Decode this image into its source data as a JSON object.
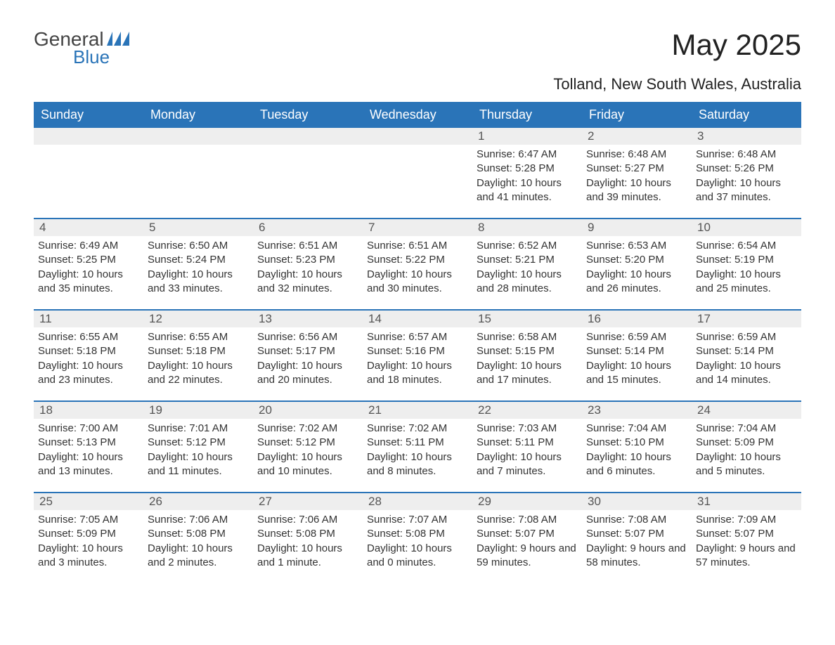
{
  "brand": {
    "general": "General",
    "blue": "Blue",
    "flag_color": "#2a74b8"
  },
  "title": "May 2025",
  "location": "Tolland, New South Wales, Australia",
  "colors": {
    "header_bg": "#2a74b8",
    "header_text": "#ffffff",
    "daynum_bg": "#eeeeee",
    "daynum_text": "#555555",
    "body_text": "#333333",
    "week_divider": "#2a74b8",
    "page_bg": "#ffffff"
  },
  "days_of_week": [
    "Sunday",
    "Monday",
    "Tuesday",
    "Wednesday",
    "Thursday",
    "Friday",
    "Saturday"
  ],
  "weeks": [
    [
      null,
      null,
      null,
      null,
      {
        "n": "1",
        "sunrise": "Sunrise: 6:47 AM",
        "sunset": "Sunset: 5:28 PM",
        "daylight": "Daylight: 10 hours and 41 minutes."
      },
      {
        "n": "2",
        "sunrise": "Sunrise: 6:48 AM",
        "sunset": "Sunset: 5:27 PM",
        "daylight": "Daylight: 10 hours and 39 minutes."
      },
      {
        "n": "3",
        "sunrise": "Sunrise: 6:48 AM",
        "sunset": "Sunset: 5:26 PM",
        "daylight": "Daylight: 10 hours and 37 minutes."
      }
    ],
    [
      {
        "n": "4",
        "sunrise": "Sunrise: 6:49 AM",
        "sunset": "Sunset: 5:25 PM",
        "daylight": "Daylight: 10 hours and 35 minutes."
      },
      {
        "n": "5",
        "sunrise": "Sunrise: 6:50 AM",
        "sunset": "Sunset: 5:24 PM",
        "daylight": "Daylight: 10 hours and 33 minutes."
      },
      {
        "n": "6",
        "sunrise": "Sunrise: 6:51 AM",
        "sunset": "Sunset: 5:23 PM",
        "daylight": "Daylight: 10 hours and 32 minutes."
      },
      {
        "n": "7",
        "sunrise": "Sunrise: 6:51 AM",
        "sunset": "Sunset: 5:22 PM",
        "daylight": "Daylight: 10 hours and 30 minutes."
      },
      {
        "n": "8",
        "sunrise": "Sunrise: 6:52 AM",
        "sunset": "Sunset: 5:21 PM",
        "daylight": "Daylight: 10 hours and 28 minutes."
      },
      {
        "n": "9",
        "sunrise": "Sunrise: 6:53 AM",
        "sunset": "Sunset: 5:20 PM",
        "daylight": "Daylight: 10 hours and 26 minutes."
      },
      {
        "n": "10",
        "sunrise": "Sunrise: 6:54 AM",
        "sunset": "Sunset: 5:19 PM",
        "daylight": "Daylight: 10 hours and 25 minutes."
      }
    ],
    [
      {
        "n": "11",
        "sunrise": "Sunrise: 6:55 AM",
        "sunset": "Sunset: 5:18 PM",
        "daylight": "Daylight: 10 hours and 23 minutes."
      },
      {
        "n": "12",
        "sunrise": "Sunrise: 6:55 AM",
        "sunset": "Sunset: 5:18 PM",
        "daylight": "Daylight: 10 hours and 22 minutes."
      },
      {
        "n": "13",
        "sunrise": "Sunrise: 6:56 AM",
        "sunset": "Sunset: 5:17 PM",
        "daylight": "Daylight: 10 hours and 20 minutes."
      },
      {
        "n": "14",
        "sunrise": "Sunrise: 6:57 AM",
        "sunset": "Sunset: 5:16 PM",
        "daylight": "Daylight: 10 hours and 18 minutes."
      },
      {
        "n": "15",
        "sunrise": "Sunrise: 6:58 AM",
        "sunset": "Sunset: 5:15 PM",
        "daylight": "Daylight: 10 hours and 17 minutes."
      },
      {
        "n": "16",
        "sunrise": "Sunrise: 6:59 AM",
        "sunset": "Sunset: 5:14 PM",
        "daylight": "Daylight: 10 hours and 15 minutes."
      },
      {
        "n": "17",
        "sunrise": "Sunrise: 6:59 AM",
        "sunset": "Sunset: 5:14 PM",
        "daylight": "Daylight: 10 hours and 14 minutes."
      }
    ],
    [
      {
        "n": "18",
        "sunrise": "Sunrise: 7:00 AM",
        "sunset": "Sunset: 5:13 PM",
        "daylight": "Daylight: 10 hours and 13 minutes."
      },
      {
        "n": "19",
        "sunrise": "Sunrise: 7:01 AM",
        "sunset": "Sunset: 5:12 PM",
        "daylight": "Daylight: 10 hours and 11 minutes."
      },
      {
        "n": "20",
        "sunrise": "Sunrise: 7:02 AM",
        "sunset": "Sunset: 5:12 PM",
        "daylight": "Daylight: 10 hours and 10 minutes."
      },
      {
        "n": "21",
        "sunrise": "Sunrise: 7:02 AM",
        "sunset": "Sunset: 5:11 PM",
        "daylight": "Daylight: 10 hours and 8 minutes."
      },
      {
        "n": "22",
        "sunrise": "Sunrise: 7:03 AM",
        "sunset": "Sunset: 5:11 PM",
        "daylight": "Daylight: 10 hours and 7 minutes."
      },
      {
        "n": "23",
        "sunrise": "Sunrise: 7:04 AM",
        "sunset": "Sunset: 5:10 PM",
        "daylight": "Daylight: 10 hours and 6 minutes."
      },
      {
        "n": "24",
        "sunrise": "Sunrise: 7:04 AM",
        "sunset": "Sunset: 5:09 PM",
        "daylight": "Daylight: 10 hours and 5 minutes."
      }
    ],
    [
      {
        "n": "25",
        "sunrise": "Sunrise: 7:05 AM",
        "sunset": "Sunset: 5:09 PM",
        "daylight": "Daylight: 10 hours and 3 minutes."
      },
      {
        "n": "26",
        "sunrise": "Sunrise: 7:06 AM",
        "sunset": "Sunset: 5:08 PM",
        "daylight": "Daylight: 10 hours and 2 minutes."
      },
      {
        "n": "27",
        "sunrise": "Sunrise: 7:06 AM",
        "sunset": "Sunset: 5:08 PM",
        "daylight": "Daylight: 10 hours and 1 minute."
      },
      {
        "n": "28",
        "sunrise": "Sunrise: 7:07 AM",
        "sunset": "Sunset: 5:08 PM",
        "daylight": "Daylight: 10 hours and 0 minutes."
      },
      {
        "n": "29",
        "sunrise": "Sunrise: 7:08 AM",
        "sunset": "Sunset: 5:07 PM",
        "daylight": "Daylight: 9 hours and 59 minutes."
      },
      {
        "n": "30",
        "sunrise": "Sunrise: 7:08 AM",
        "sunset": "Sunset: 5:07 PM",
        "daylight": "Daylight: 9 hours and 58 minutes."
      },
      {
        "n": "31",
        "sunrise": "Sunrise: 7:09 AM",
        "sunset": "Sunset: 5:07 PM",
        "daylight": "Daylight: 9 hours and 57 minutes."
      }
    ]
  ]
}
